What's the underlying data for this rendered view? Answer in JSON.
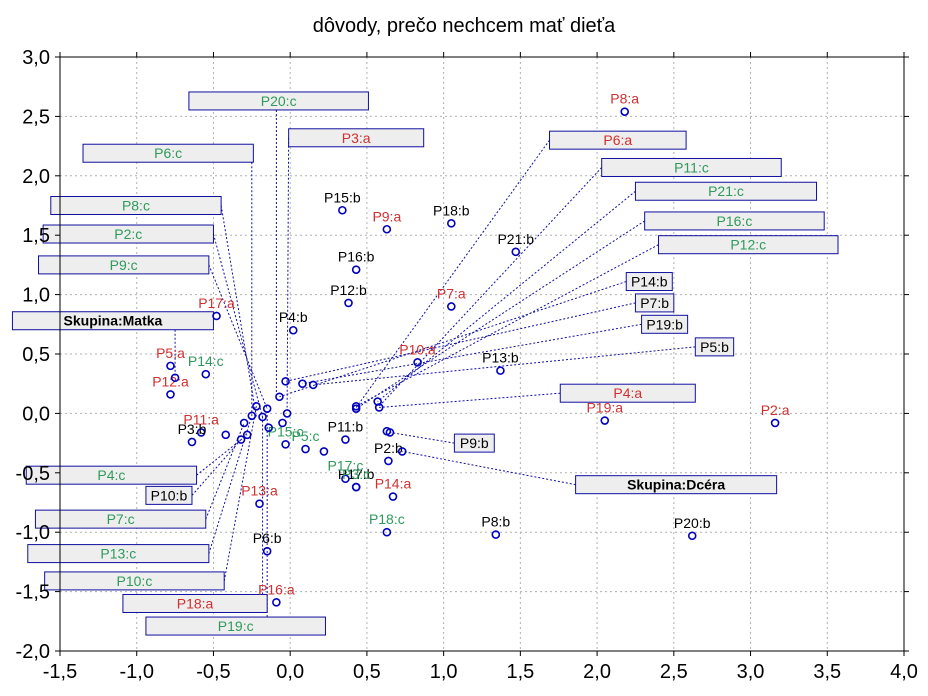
{
  "chart_data": {
    "type": "scatter",
    "title": "dôvody, prečo nechcem mať dieťa",
    "xlim": [
      -1.5,
      4.0
    ],
    "ylim": [
      -2.0,
      3.0
    ],
    "x_ticks": [
      -1.5,
      -1.0,
      -0.5,
      0.0,
      0.5,
      1.0,
      1.5,
      2.0,
      2.5,
      3.0,
      3.5,
      4.0
    ],
    "y_ticks": [
      -2.0,
      -1.5,
      -1.0,
      -0.5,
      0.0,
      0.5,
      1.0,
      1.5,
      2.0,
      2.5,
      3.0
    ],
    "x_tick_labels": [
      "-1,5",
      "-1,0",
      "-0,5",
      "0,0",
      "0,5",
      "1,0",
      "1,5",
      "2,0",
      "2,5",
      "3,0",
      "3,5",
      "4,0"
    ],
    "y_tick_labels": [
      "-2,0",
      "-1,5",
      "-1,0",
      "-0,5",
      "0,0",
      "0,5",
      "1,0",
      "1,5",
      "2,0",
      "2,5",
      "3,0"
    ],
    "grid": true,
    "colors": {
      "a": "#d03030",
      "b": "#000000",
      "c": "#2f9a5a",
      "group": "#000000",
      "marker": "#0000c0",
      "box_fill": "#eeeeee",
      "box_stroke": "#1010a0"
    },
    "points": [
      {
        "label": "P8:a",
        "x": 2.18,
        "y": 2.54,
        "g": "a"
      },
      {
        "label": "P2:a",
        "x": 3.16,
        "y": -0.08,
        "g": "a"
      },
      {
        "label": "P19:a",
        "x": 2.05,
        "y": -0.06,
        "g": "a"
      },
      {
        "label": "P9:a",
        "x": 0.63,
        "y": 1.55,
        "g": "a"
      },
      {
        "label": "P7:a",
        "x": 1.05,
        "y": 0.9,
        "g": "a"
      },
      {
        "label": "P10:a",
        "x": 0.83,
        "y": 0.43,
        "g": "a"
      },
      {
        "label": "P17:a",
        "x": -0.48,
        "y": 0.82,
        "g": "a"
      },
      {
        "label": "P5:a",
        "x": -0.78,
        "y": 0.4,
        "g": "a"
      },
      {
        "label": "P12:a",
        "x": -0.78,
        "y": 0.16,
        "g": "a"
      },
      {
        "label": "P11:a",
        "x": -0.58,
        "y": -0.16,
        "g": "a"
      },
      {
        "label": "P13:a",
        "x": -0.2,
        "y": -0.76,
        "g": "a"
      },
      {
        "label": "P14:a",
        "x": 0.67,
        "y": -0.7,
        "g": "a"
      },
      {
        "label": "P16:a",
        "x": -0.09,
        "y": -1.59,
        "g": "a"
      },
      {
        "label": "P15:b",
        "x": 0.34,
        "y": 1.71,
        "g": "b"
      },
      {
        "label": "P18:b",
        "x": 1.05,
        "y": 1.6,
        "g": "b"
      },
      {
        "label": "P21:b",
        "x": 1.47,
        "y": 1.36,
        "g": "b"
      },
      {
        "label": "P16:b",
        "x": 0.43,
        "y": 1.21,
        "g": "b"
      },
      {
        "label": "P12:b",
        "x": 0.38,
        "y": 0.93,
        "g": "b"
      },
      {
        "label": "P4:b",
        "x": 0.02,
        "y": 0.7,
        "g": "b"
      },
      {
        "label": "P13:b",
        "x": 1.37,
        "y": 0.36,
        "g": "b"
      },
      {
        "label": "P11:b",
        "x": 0.36,
        "y": -0.22,
        "g": "b"
      },
      {
        "label": "P3:b",
        "x": -0.64,
        "y": -0.24,
        "g": "b"
      },
      {
        "label": "P2:b",
        "x": 0.64,
        "y": -0.4,
        "g": "b"
      },
      {
        "label": "P17:b",
        "x": 0.43,
        "y": -0.62,
        "g": "b"
      },
      {
        "label": "P8:b",
        "x": 1.34,
        "y": -1.02,
        "g": "b"
      },
      {
        "label": "P20:b",
        "x": 2.62,
        "y": -1.03,
        "g": "b"
      },
      {
        "label": "P6:b",
        "x": -0.15,
        "y": -1.16,
        "g": "b"
      },
      {
        "label": "P14:c",
        "x": -0.55,
        "y": 0.33,
        "g": "c"
      },
      {
        "label": "P15:c",
        "x": -0.03,
        "y": -0.26,
        "g": "c"
      },
      {
        "label": "P5:c",
        "x": 0.1,
        "y": -0.3,
        "g": "c"
      },
      {
        "label": "P17:c",
        "x": 0.36,
        "y": -0.55,
        "g": "c"
      },
      {
        "label": "P3:c",
        "x": 0.43,
        "y": -0.62,
        "g": "c"
      },
      {
        "label": "P18:c",
        "x": 0.63,
        "y": -1.0,
        "g": "c"
      },
      {
        "label": "",
        "x": -0.75,
        "y": 0.3,
        "g": "x"
      },
      {
        "label": "",
        "x": -0.3,
        "y": -0.08,
        "g": "x"
      },
      {
        "label": "",
        "x": -0.25,
        "y": -0.02,
        "g": "x"
      },
      {
        "label": "",
        "x": -0.22,
        "y": 0.06,
        "g": "x"
      },
      {
        "label": "",
        "x": -0.18,
        "y": -0.03,
        "g": "x"
      },
      {
        "label": "",
        "x": -0.15,
        "y": 0.04,
        "g": "x"
      },
      {
        "label": "",
        "x": -0.28,
        "y": -0.18,
        "g": "x"
      },
      {
        "label": "",
        "x": -0.32,
        "y": -0.22,
        "g": "x"
      },
      {
        "label": "",
        "x": -0.42,
        "y": -0.18,
        "g": "x"
      },
      {
        "label": "",
        "x": -0.14,
        "y": -0.12,
        "g": "x"
      },
      {
        "label": "",
        "x": -0.05,
        "y": -0.08,
        "g": "x"
      },
      {
        "label": "",
        "x": -0.02,
        "y": 0.0,
        "g": "x"
      },
      {
        "label": "",
        "x": -0.07,
        "y": 0.14,
        "g": "x"
      },
      {
        "label": "",
        "x": -0.03,
        "y": 0.27,
        "g": "x"
      },
      {
        "label": "",
        "x": 0.08,
        "y": 0.25,
        "g": "x"
      },
      {
        "label": "",
        "x": 0.15,
        "y": 0.24,
        "g": "x"
      },
      {
        "label": "",
        "x": 0.22,
        "y": -0.32,
        "g": "x"
      },
      {
        "label": "",
        "x": 0.43,
        "y": 0.06,
        "g": "x"
      },
      {
        "label": "",
        "x": 0.43,
        "y": 0.04,
        "g": "x"
      },
      {
        "label": "",
        "x": 0.57,
        "y": 0.1,
        "g": "x"
      },
      {
        "label": "",
        "x": 0.58,
        "y": 0.05,
        "g": "x"
      },
      {
        "label": "",
        "x": 0.63,
        "y": -0.15,
        "g": "x"
      },
      {
        "label": "",
        "x": 0.65,
        "y": -0.16,
        "g": "x"
      },
      {
        "label": "",
        "x": 0.73,
        "y": -0.32,
        "g": "x"
      }
    ],
    "boxed_labels": [
      {
        "label": "P20:c",
        "bx": -0.66,
        "by": 2.63,
        "bw": 1.17,
        "g": "c",
        "tx": -0.09,
        "ty": 0.14
      },
      {
        "label": "P3:a",
        "bx": -0.01,
        "by": 2.32,
        "bw": 0.88,
        "g": "a",
        "tx": -0.02,
        "ty": 0.05
      },
      {
        "label": "P6:a",
        "bx": 1.69,
        "by": 2.3,
        "bw": 0.89,
        "g": "a",
        "tx": 0.43,
        "ty": 0.05
      },
      {
        "label": "P6:c",
        "bx": -1.35,
        "by": 2.19,
        "bw": 1.11,
        "g": "c",
        "tx": -0.25,
        "ty": -0.02
      },
      {
        "label": "P11:c",
        "bx": 2.03,
        "by": 2.07,
        "bw": 1.17,
        "g": "c",
        "tx": 0.58,
        "ty": 0.06
      },
      {
        "label": "P21:c",
        "bx": 2.25,
        "by": 1.87,
        "bw": 1.18,
        "g": "c",
        "tx": 0.57,
        "ty": 0.1
      },
      {
        "label": "P8:c",
        "bx": -1.56,
        "by": 1.75,
        "bw": 1.11,
        "g": "c",
        "tx": -0.22,
        "ty": -0.03
      },
      {
        "label": "P16:c",
        "bx": 2.31,
        "by": 1.62,
        "bw": 1.17,
        "g": "c",
        "tx": 0.43,
        "ty": 0.04
      },
      {
        "label": "P2:c",
        "bx": -1.61,
        "by": 1.51,
        "bw": 1.11,
        "g": "c",
        "tx": -0.18,
        "ty": -0.03
      },
      {
        "label": "P12:c",
        "bx": 2.4,
        "by": 1.42,
        "bw": 1.17,
        "g": "c",
        "tx": 0.43,
        "ty": 0.06
      },
      {
        "label": "P9:c",
        "bx": -1.64,
        "by": 1.25,
        "bw": 1.11,
        "g": "c",
        "tx": -0.15,
        "ty": 0.04
      },
      {
        "label": "P14:b",
        "bx": 2.19,
        "by": 1.11,
        "bw": 0.3,
        "g": "b",
        "tx": -0.07,
        "ty": 0.14
      },
      {
        "label": "P7:b",
        "bx": 2.25,
        "by": 0.93,
        "bw": 0.25,
        "g": "b",
        "tx": -0.03,
        "ty": 0.27
      },
      {
        "label": "P19:b",
        "bx": 2.29,
        "by": 0.75,
        "bw": 0.3,
        "g": "b",
        "tx": 0.08,
        "ty": 0.25
      },
      {
        "label": "P5:b",
        "bx": 2.64,
        "by": 0.56,
        "bw": 0.25,
        "g": "b",
        "tx": 0.15,
        "ty": 0.24
      },
      {
        "label": "Skupina:Matka",
        "bx": -1.81,
        "by": 0.78,
        "bw": 1.31,
        "g": "group",
        "tx": -0.75,
        "ty": 0.3
      },
      {
        "label": "P4:a",
        "bx": 1.76,
        "by": 0.17,
        "bw": 0.88,
        "g": "a",
        "tx": 0.58,
        "ty": 0.05
      },
      {
        "label": "P9:b",
        "bx": 1.07,
        "by": -0.25,
        "bw": 0.26,
        "g": "b",
        "tx": 0.65,
        "ty": -0.16
      },
      {
        "label": "P4:c",
        "bx": -1.72,
        "by": -0.52,
        "bw": 1.11,
        "g": "c",
        "tx": -0.28,
        "ty": -0.18
      },
      {
        "label": "Skupina:Dcéra",
        "bx": 1.86,
        "by": -0.6,
        "bw": 1.31,
        "g": "group",
        "tx": 0.73,
        "ty": -0.32
      },
      {
        "label": "P10:b",
        "bx": -0.94,
        "by": -0.69,
        "bw": 0.3,
        "g": "b",
        "tx": -0.32,
        "ty": -0.22
      },
      {
        "label": "P7:c",
        "bx": -1.66,
        "by": -0.89,
        "bw": 1.11,
        "g": "c",
        "tx": -0.3,
        "ty": -0.08
      },
      {
        "label": "P13:c",
        "bx": -1.71,
        "by": -1.18,
        "bw": 1.18,
        "g": "c",
        "tx": -0.25,
        "ty": -0.02
      },
      {
        "label": "P10:c",
        "bx": -1.6,
        "by": -1.41,
        "bw": 1.17,
        "g": "c",
        "tx": -0.22,
        "ty": 0.06
      },
      {
        "label": "P18:a",
        "bx": -1.09,
        "by": -1.6,
        "bw": 0.94,
        "g": "a",
        "tx": -0.18,
        "ty": -0.03
      },
      {
        "label": "P19:c",
        "bx": -0.94,
        "by": -1.79,
        "bw": 1.17,
        "g": "c",
        "tx": -0.15,
        "ty": 0.04
      }
    ]
  }
}
